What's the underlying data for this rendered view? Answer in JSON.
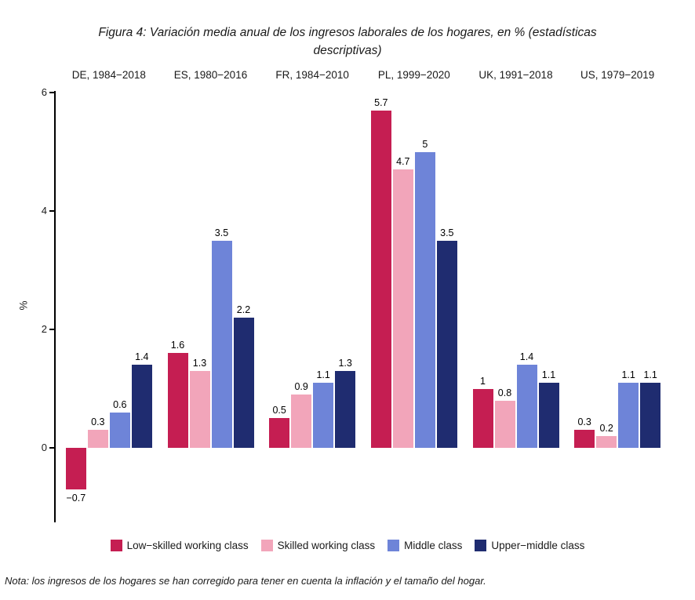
{
  "figure": {
    "title_line1": "Figura 4: Variación media anual de los ingresos laborales de los hogares, en % (estadísticas",
    "title_line2": "descriptivas)",
    "note": "Nota: los ingresos de los hogares se han corregido para tener en cuenta la inflación y el tamaño del hogar."
  },
  "chart_data": {
    "type": "bar",
    "title": "Figura 4: Variación media anual de los ingresos laborales de los hogares, en % (estadísticas descriptivas)",
    "facets": [
      "DE, 1984−2018",
      "ES, 1980−2016",
      "FR, 1984−2010",
      "PL, 1999−2020",
      "UK, 1991−2018",
      "US, 1979−2019"
    ],
    "series": [
      {
        "name": "Low−skilled working class",
        "color": "#C51E52",
        "values": [
          -0.7,
          1.6,
          0.5,
          5.7,
          1,
          0.3
        ]
      },
      {
        "name": "Skilled working class",
        "color": "#F2A5BA",
        "values": [
          0.3,
          1.3,
          0.9,
          4.7,
          0.8,
          0.2
        ]
      },
      {
        "name": "Middle class",
        "color": "#6E84D8",
        "values": [
          0.6,
          3.5,
          1.1,
          5,
          1.4,
          1.1
        ]
      },
      {
        "name": "Upper−middle class",
        "color": "#1F2C70",
        "values": [
          1.4,
          2.2,
          1.3,
          3.5,
          1.1,
          1.1
        ]
      }
    ],
    "xlabel": "",
    "ylabel": "%",
    "yticks": [
      0,
      2,
      4,
      6
    ],
    "ylim": [
      -1.3,
      6.1
    ],
    "grid": false,
    "legend_position": "bottom"
  }
}
